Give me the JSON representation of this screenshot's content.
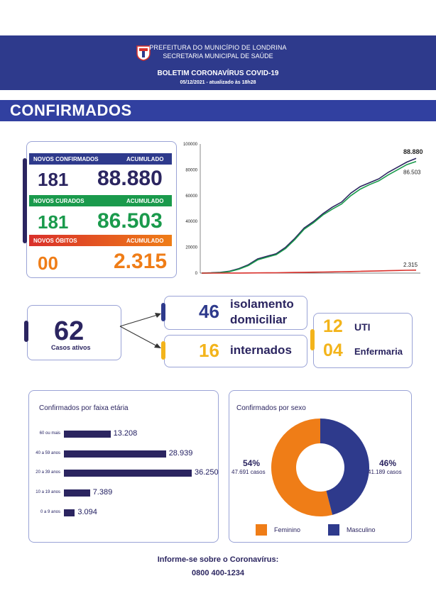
{
  "header": {
    "line1": "PREFEITURA DO MUNICÍPIO DE LONDRINA",
    "line2": "SECRETARIA MUNICIPAL DE SAÚDE",
    "title": "BOLETIM CORONAVÍRUS COVID-19",
    "date": "05/12/2021 - atualizado às 18h28"
  },
  "section_title": "CONFIRMADOS",
  "summary": {
    "confirmed_label": "NOVOS CONFIRMADOS",
    "acc_label": "ACUMULADO",
    "confirmed_new": "181",
    "confirmed_acc": "88.880",
    "cured_label": "NOVOS CURADOS",
    "cured_new": "181",
    "cured_acc": "86.503",
    "deaths_label": "NOVOS ÓBITOS",
    "deaths_new": "00",
    "deaths_acc": "2.315"
  },
  "active": {
    "count": "62",
    "label": "Casos ativos",
    "isolation_count": "46",
    "isolation_label1": "isolamento",
    "isolation_label2": "domiciliar",
    "hosp_count": "16",
    "hosp_label": "internados",
    "uti_count": "12",
    "uti_label": "UTI",
    "ward_count": "04",
    "ward_label": "Enfermaria"
  },
  "age_chart_title": "Confirmados por faixa etária",
  "sex_chart_title": "Confirmados por sexo",
  "sex": {
    "fem_pct": "54%",
    "fem_cases": "47.691 casos",
    "masc_pct": "46%",
    "masc_cases": "41.189 casos",
    "fem_legend": "Feminino",
    "masc_legend": "Masculino"
  },
  "footer": {
    "line1": "Informe-se sobre o Coronavírus:",
    "line2": "0800 400-1234"
  },
  "colors": {
    "navy": "#2b2560",
    "blue": "#2e3a8c",
    "green": "#1a9a4c",
    "orange": "#ef7d17",
    "red": "#d9302b",
    "yellow": "#f3b41b"
  },
  "chart_data": [
    {
      "type": "line",
      "title": "",
      "ylim": [
        0,
        100000
      ],
      "yticks": [
        "0",
        "20000",
        "40000",
        "60000",
        "80000",
        "100000"
      ],
      "series": [
        {
          "name": "Confirmados",
          "color": "#2b2560",
          "end_label": "88.880",
          "values": [
            0,
            200,
            600,
            1500,
            3500,
            6500,
            11000,
            13000,
            15000,
            20000,
            27000,
            35000,
            40000,
            46000,
            51000,
            55000,
            62000,
            67000,
            70000,
            73000,
            78000,
            82000,
            86000,
            88880
          ]
        },
        {
          "name": "Curados",
          "color": "#1a9a4c",
          "end_label": "86.503",
          "values": [
            0,
            100,
            400,
            1200,
            3000,
            5800,
            10200,
            12300,
            14300,
            19000,
            26000,
            34000,
            39000,
            45000,
            49500,
            53500,
            60000,
            65000,
            68500,
            71500,
            76000,
            80000,
            84000,
            86503
          ]
        },
        {
          "name": "Óbitos",
          "color": "#d9302b",
          "end_label": "2.315",
          "values": [
            0,
            5,
            15,
            30,
            60,
            110,
            170,
            230,
            290,
            380,
            480,
            590,
            700,
            830,
            950,
            1080,
            1230,
            1380,
            1540,
            1700,
            1860,
            2030,
            2190,
            2315
          ]
        }
      ]
    },
    {
      "type": "bar",
      "title": "Confirmados por faixa etária",
      "categories": [
        "60 ou mais",
        "40 a 59 anos",
        "20 a 39 anos",
        "10 a 19 anos",
        "0 a 9 anos"
      ],
      "values": [
        13208,
        28939,
        36250,
        7389,
        3094
      ],
      "labels": [
        "13.208",
        "28.939",
        "36.250",
        "7.389",
        "3.094"
      ]
    },
    {
      "type": "pie",
      "title": "Confirmados por sexo",
      "categories": [
        "Feminino",
        "Masculino"
      ],
      "values": [
        54,
        46
      ],
      "colors": [
        "#ef7d17",
        "#2e3a8c"
      ]
    }
  ]
}
